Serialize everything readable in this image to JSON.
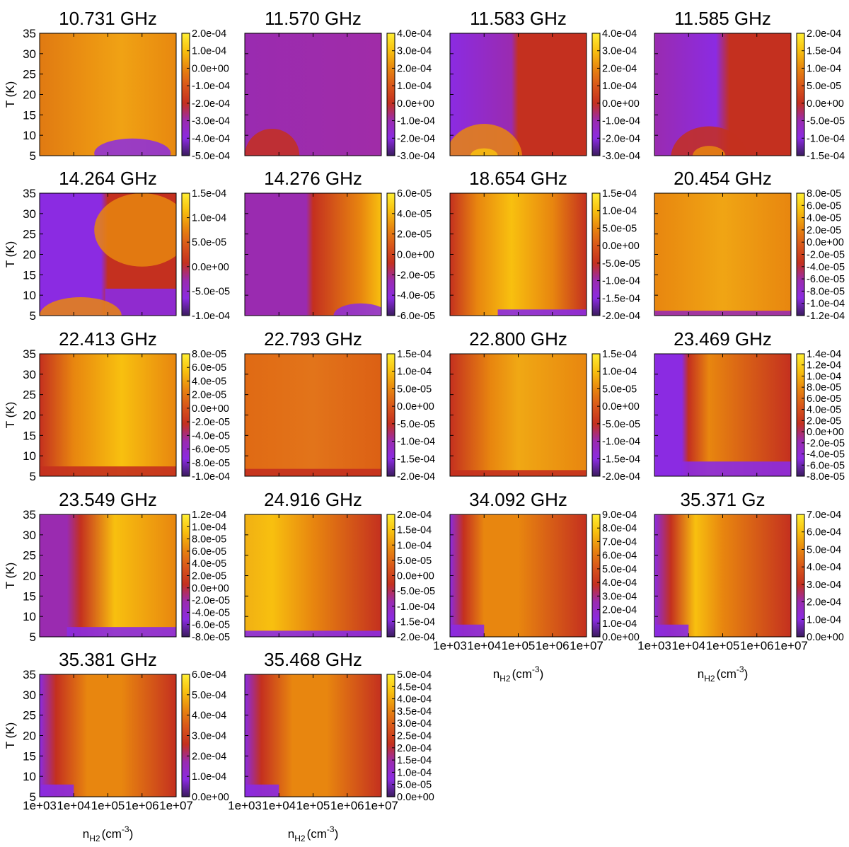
{
  "figure_title": "",
  "chart_data": {
    "type": "heatmap",
    "xlabel_main": "n",
    "xlabel_sub": "H2",
    "xlabel_unit_open": "(cm",
    "xlabel_unit_sup": "-3",
    "xlabel_unit_close": ")",
    "ylabel": "T  (K)",
    "x_ticks": [
      "1e+03",
      "1e+04",
      "1e+05",
      "1e+06",
      "1e+07"
    ],
    "x_range": [
      1000,
      10000000
    ],
    "x_scale": "log",
    "y_ticks": [
      "5",
      "10",
      "15",
      "20",
      "25",
      "30",
      "35"
    ],
    "y_range": [
      5,
      35
    ],
    "colormap_stops": [
      "#3a1c5e",
      "#8b2be2",
      "#9a2bb0",
      "#c4301f",
      "#d9561a",
      "#e8860f",
      "#f8c00f",
      "#ffee33"
    ],
    "panels": [
      {
        "title": "10.731 GHz",
        "cb_ticks": [
          "2.0e-04",
          "1.0e-04",
          "0.0e+00",
          "-1.0e-04",
          "-2.0e-04",
          "-3.0e-04",
          "-4.0e-04",
          "-5.0e-04"
        ],
        "cb_range": [
          -0.0005,
          0.0002
        ]
      },
      {
        "title": "11.570 GHz",
        "cb_ticks": [
          "4.0e-04",
          "3.0e-04",
          "2.0e-04",
          "1.0e-04",
          "0.0e+00",
          "-1.0e-04",
          "-2.0e-04",
          "-3.0e-04"
        ],
        "cb_range": [
          -0.0003,
          0.0004
        ]
      },
      {
        "title": "11.583 GHz",
        "cb_ticks": [
          "4.0e-04",
          "3.0e-04",
          "2.0e-04",
          "1.0e-04",
          "0.0e+00",
          "-1.0e-04",
          "-2.0e-04",
          "-3.0e-04"
        ],
        "cb_range": [
          -0.0003,
          0.0004
        ]
      },
      {
        "title": "11.585 GHz",
        "cb_ticks": [
          "2.0e-04",
          "1.5e-04",
          "1.0e-04",
          "5.0e-05",
          "0.0e+00",
          "-5.0e-05",
          "-1.0e-04",
          "-1.5e-04"
        ],
        "cb_range": [
          -0.00015,
          0.0002
        ]
      },
      {
        "title": "14.264 GHz",
        "cb_ticks": [
          "1.5e-04",
          "1.0e-04",
          "5.0e-05",
          "0.0e+00",
          "-5.0e-05",
          "-1.0e-04"
        ],
        "cb_range": [
          -0.0001,
          0.00015
        ]
      },
      {
        "title": "14.276 GHz",
        "cb_ticks": [
          "6.0e-05",
          "4.0e-05",
          "2.0e-05",
          "0.0e+00",
          "-2.0e-05",
          "-4.0e-05",
          "-6.0e-05"
        ],
        "cb_range": [
          -6e-05,
          6e-05
        ]
      },
      {
        "title": "18.654 GHz",
        "cb_ticks": [
          "1.5e-04",
          "1.0e-04",
          "5.0e-05",
          "0.0e+00",
          "-5.0e-05",
          "-1.0e-04",
          "-1.5e-04",
          "-2.0e-04"
        ],
        "cb_range": [
          -0.0002,
          0.00015
        ]
      },
      {
        "title": "20.454 GHz",
        "cb_ticks": [
          "8.0e-05",
          "6.0e-05",
          "4.0e-05",
          "2.0e-05",
          "0.0e+00",
          "-2.0e-05",
          "-4.0e-05",
          "-6.0e-05",
          "-8.0e-05",
          "-1.0e-04",
          "-1.2e-04"
        ],
        "cb_range": [
          -0.00012,
          8e-05
        ]
      },
      {
        "title": "22.413 GHz",
        "cb_ticks": [
          "8.0e-05",
          "6.0e-05",
          "4.0e-05",
          "2.0e-05",
          "0.0e+00",
          "-2.0e-05",
          "-4.0e-05",
          "-6.0e-05",
          "-8.0e-05",
          "-1.0e-04"
        ],
        "cb_range": [
          -0.0001,
          8e-05
        ]
      },
      {
        "title": "22.793 GHz",
        "cb_ticks": [
          "1.5e-04",
          "1.0e-04",
          "5.0e-05",
          "0.0e+00",
          "-5.0e-05",
          "-1.0e-04",
          "-1.5e-04",
          "-2.0e-04"
        ],
        "cb_range": [
          -0.0002,
          0.00015
        ]
      },
      {
        "title": "22.800 GHz",
        "cb_ticks": [
          "1.5e-04",
          "1.0e-04",
          "5.0e-05",
          "0.0e+00",
          "-5.0e-05",
          "-1.0e-04",
          "-1.5e-04",
          "-2.0e-04"
        ],
        "cb_range": [
          -0.0002,
          0.00015
        ]
      },
      {
        "title": "23.469 GHz",
        "cb_ticks": [
          "1.4e-04",
          "1.2e-04",
          "1.0e-04",
          "8.0e-05",
          "6.0e-05",
          "4.0e-05",
          "2.0e-05",
          "0.0e+00",
          "-2.0e-05",
          "-4.0e-05",
          "-6.0e-05",
          "-8.0e-05"
        ],
        "cb_range": [
          -8e-05,
          0.00014
        ]
      },
      {
        "title": "23.549 GHz",
        "cb_ticks": [
          "1.2e-04",
          "1.0e-04",
          "8.0e-05",
          "6.0e-05",
          "4.0e-05",
          "2.0e-05",
          "0.0e+00",
          "-2.0e-05",
          "-4.0e-05",
          "-6.0e-05",
          "-8.0e-05"
        ],
        "cb_range": [
          -8e-05,
          0.00012
        ]
      },
      {
        "title": "24.916 GHz",
        "cb_ticks": [
          "2.0e-04",
          "1.5e-04",
          "1.0e-04",
          "5.0e-05",
          "0.0e+00",
          "-5.0e-05",
          "-1.0e-04",
          "-1.5e-04",
          "-2.0e-04"
        ],
        "cb_range": [
          -0.0002,
          0.0002
        ]
      },
      {
        "title": "34.092 GHz",
        "cb_ticks": [
          "9.0e-04",
          "8.0e-04",
          "7.0e-04",
          "6.0e-04",
          "5.0e-04",
          "4.0e-04",
          "3.0e-04",
          "2.0e-04",
          "1.0e-04",
          "0.0e+00"
        ],
        "cb_range": [
          0.0,
          0.0009
        ]
      },
      {
        "title": "35.371 Gz",
        "cb_ticks": [
          "7.0e-04",
          "6.0e-04",
          "5.0e-04",
          "4.0e-04",
          "3.0e-04",
          "2.0e-04",
          "1.0e-04",
          "0.0e+00"
        ],
        "cb_range": [
          0.0,
          0.0007
        ]
      },
      {
        "title": "35.381 GHz",
        "cb_ticks": [
          "6.0e-04",
          "5.0e-04",
          "4.0e-04",
          "3.0e-04",
          "2.0e-04",
          "1.0e-04",
          "0.0e+00"
        ],
        "cb_range": [
          0.0,
          0.0006
        ]
      },
      {
        "title": "35.468 GHz",
        "cb_ticks": [
          "5.0e-04",
          "4.5e-04",
          "4.0e-04",
          "3.5e-04",
          "3.0e-04",
          "2.5e-04",
          "2.0e-04",
          "1.5e-04",
          "1.0e-04",
          "5.0e-05",
          "0.0e+00"
        ],
        "cb_range": [
          0.0,
          0.0005
        ]
      }
    ]
  }
}
